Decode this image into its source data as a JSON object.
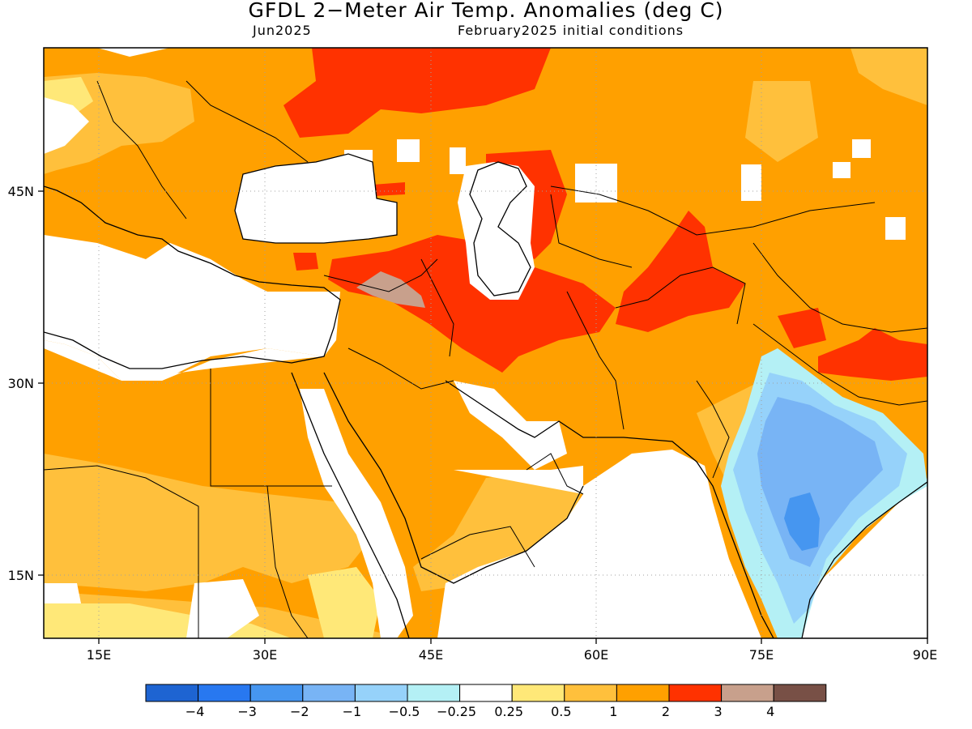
{
  "header": {
    "title": "GFDL 2−Meter Air Temp. Anomalies (deg C)",
    "valid_month": "Jun2025",
    "init_conditions": "February2025 initial conditions"
  },
  "map": {
    "lon_range": [
      10,
      90
    ],
    "lat_range": [
      10,
      55
    ],
    "lon_ticks": [
      "15E",
      "30E",
      "45E",
      "60E",
      "75E",
      "90E"
    ],
    "lat_ticks": [
      "45N",
      "30N",
      "15N"
    ],
    "grid_lines": true
  },
  "colorbar": {
    "colors": [
      "#1e64d2",
      "#2878f0",
      "#4696f0",
      "#78b4f5",
      "#96d2fa",
      "#b4f0f5",
      "#ffffff",
      "#ffe878",
      "#ffc03c",
      "#ffa000",
      "#ff3200",
      "#c8a08c",
      "#785046"
    ],
    "labels": [
      "−4",
      "−3",
      "−2",
      "−1",
      "−0.5",
      "−0.25",
      "0.25",
      "0.5",
      "1",
      "2",
      "3",
      "4"
    ]
  },
  "legend_colors": {
    "lt_-0.5": "#96d2fa",
    "-0.5_-0.25": "#b4f0f5",
    "neutral": "#ffffff",
    "0.25_0.5": "#ffe878",
    "0.5_1": "#ffc03c",
    "1_2": "#ffa000",
    "2_3": "#ff3200",
    "3_4": "#c8a08c"
  }
}
